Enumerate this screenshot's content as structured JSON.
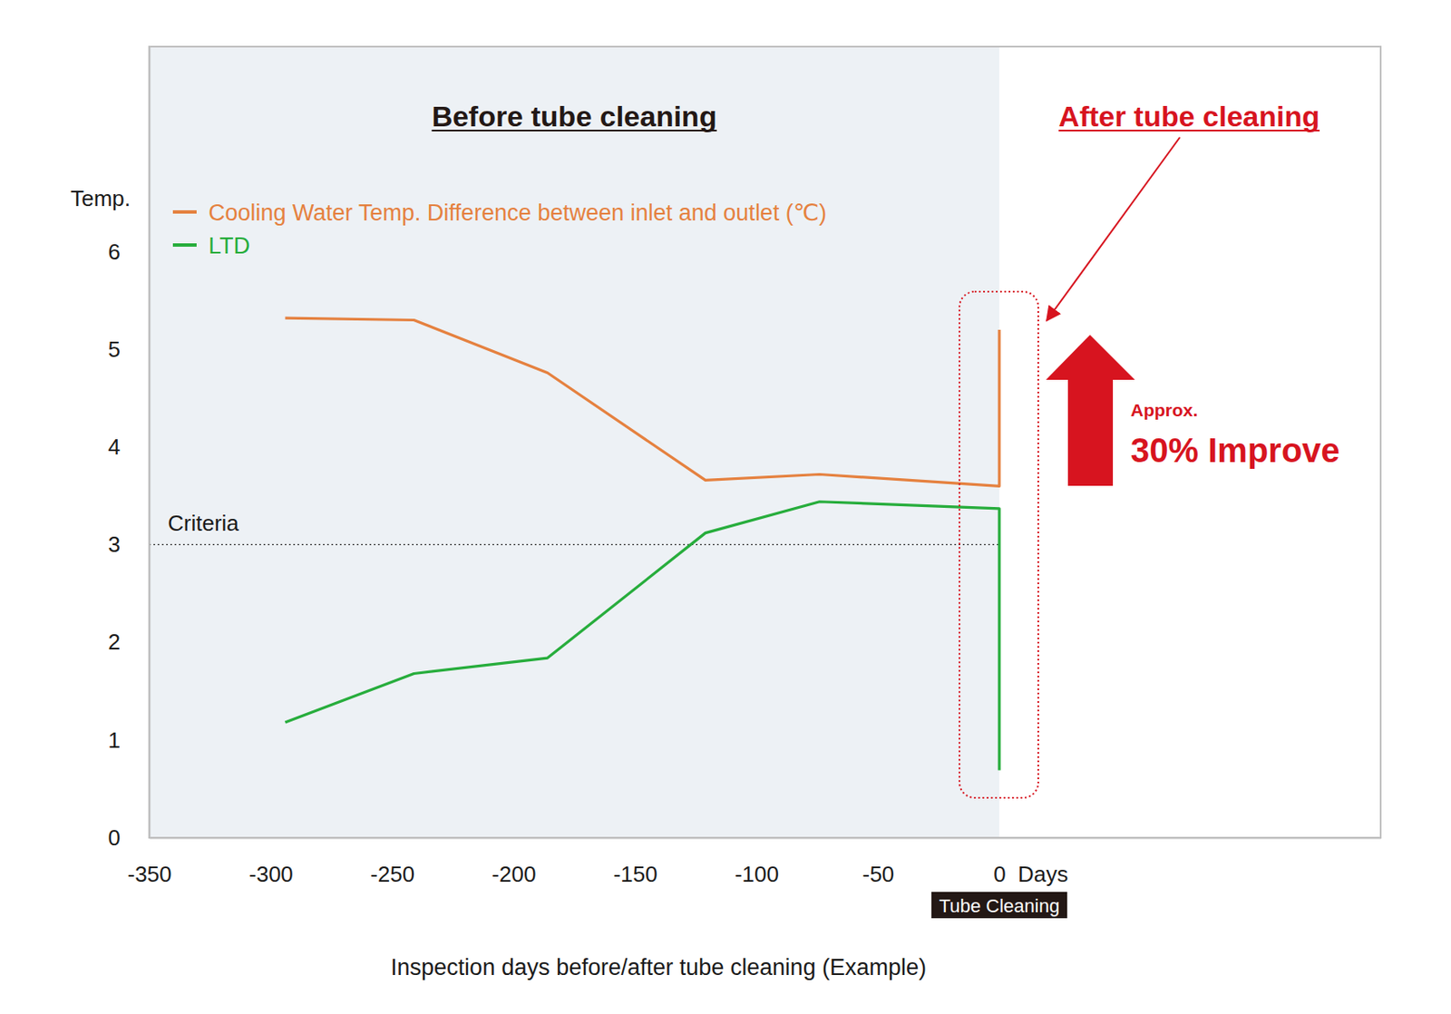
{
  "chart_data": {
    "type": "line",
    "ylabel": "Temp.",
    "xlabel": "Inspection days before/after tube cleaning (Example)",
    "x_unit_label": "Days",
    "event": {
      "x": 0,
      "label": "Tube Cleaning"
    },
    "x": [
      -294,
      -241,
      -186,
      -121,
      -74,
      0,
      0
    ],
    "series": [
      {
        "name": "Cooling Water Temp. Difference between inlet and outlet (℃)",
        "color": "#e5813f",
        "values": [
          5.32,
          5.3,
          4.76,
          3.66,
          3.72,
          3.6,
          5.2
        ]
      },
      {
        "name": "LTD",
        "color": "#27ad3c",
        "values": [
          1.18,
          1.68,
          1.84,
          3.12,
          3.44,
          3.37,
          0.69
        ]
      }
    ],
    "xlim": [
      -350,
      157
    ],
    "xticks": [
      -350,
      -300,
      -250,
      -200,
      -150,
      -100,
      -50,
      0
    ],
    "ylim": [
      0,
      8.1
    ],
    "yticks": [
      0,
      1,
      2,
      3,
      4,
      5,
      6
    ],
    "grid": false,
    "legend": "upper left",
    "regions": [
      {
        "x": [
          -350,
          0
        ],
        "color": "#edf1f5"
      }
    ],
    "reference_lines": [
      {
        "y": 3,
        "x": [
          -350,
          0
        ],
        "label": "Criteria",
        "line_style": "dotted"
      }
    ],
    "annotations": [
      {
        "text": "Before tube cleaning",
        "color": "#231815"
      },
      {
        "text": "After tube cleaning",
        "color": "#d7141f"
      },
      {
        "text": "Approx.",
        "color": "#d7141f"
      },
      {
        "text": "30% Improve",
        "color": "#d7141f"
      }
    ]
  }
}
